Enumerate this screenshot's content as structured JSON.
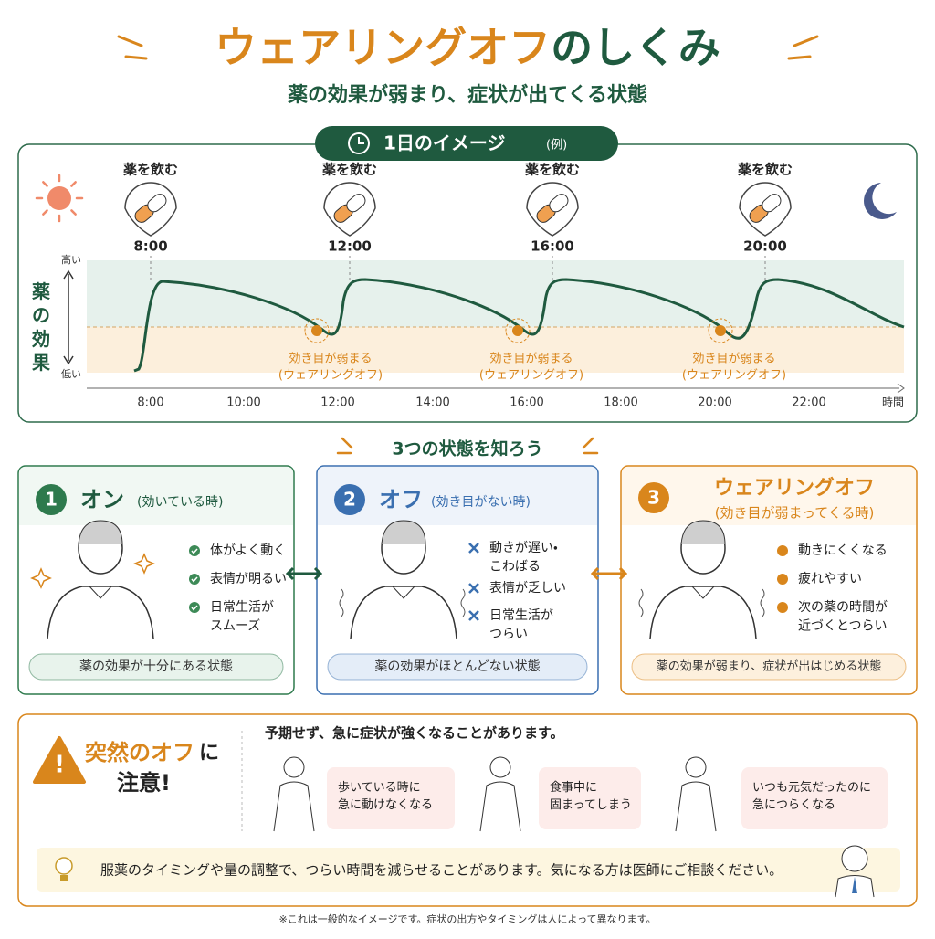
{
  "header": {
    "title_main": "ウェアリングオフ",
    "title_rest": "のしくみ",
    "subtitle": "薬の効果が弱まり、症状が出てくる状態"
  },
  "timeline": {
    "badge": "1日のイメージ",
    "badge_note": "(例)",
    "doses": [
      {
        "label": "薬を飲む",
        "time": "8:00"
      },
      {
        "label": "薬を飲む",
        "time": "12:00"
      },
      {
        "label": "薬を飲む",
        "time": "16:00"
      },
      {
        "label": "薬を飲む",
        "time": "20:00"
      }
    ],
    "y_label": "薬の効果",
    "y_high": "高い",
    "y_low": "低い",
    "wearing_off": [
      {
        "line1": "効き目が弱まる",
        "line2": "(ウェアリングオフ)"
      },
      {
        "line1": "効き目が弱まる",
        "line2": "(ウェアリングオフ)"
      },
      {
        "line1": "効き目が弱まる",
        "line2": "(ウェアリングオフ)"
      }
    ],
    "x_ticks": [
      "8:00",
      "10:00",
      "12:00",
      "14:00",
      "16:00",
      "18:00",
      "20:00",
      "22:00"
    ],
    "x_label": "時間"
  },
  "states": {
    "heading": "3つの状態を知ろう",
    "cards": [
      {
        "number": "1",
        "title": "オン",
        "subtitle": "(効いている時)",
        "items": [
          "体がよく動く",
          "表情が明るい",
          "日常生活が\nスムーズ"
        ],
        "footer": "薬の効果が十分にある状態"
      },
      {
        "number": "2",
        "title": "オフ",
        "subtitle": "(効き目がない時)",
        "items": [
          "動きが遅い・\nこわばる",
          "表情が乏しい",
          "日常生活が\nつらい"
        ],
        "footer": "薬の効果がほとんどない状態"
      },
      {
        "number": "3",
        "title": "ウェアリングオフ",
        "subtitle": "(効き目が弱まってくる時)",
        "items": [
          "動きにくくなる",
          "疲れやすい",
          "次の薬の時間が\n近づくとつらい"
        ],
        "footer": "薬の効果が弱まり、症状が出はじめる状態"
      }
    ]
  },
  "warning": {
    "title_a": "突然のオフ",
    "title_b": "に",
    "title_c": "注意!",
    "intro": "予期せず、急に症状が強くなることがあります。",
    "examples": [
      "歩いている時に\n急に動けなくなる",
      "食事中に\n固まってしまう",
      "いつも元気だったのに\n急につらくなる"
    ],
    "tip": "服薬のタイミングや量の調整で、つらい時間を減らせることがあります。気になる方は医師にご相談ください。"
  },
  "footnote": "※これは一般的なイメージです。症状の出方やタイミングは人によって異なります。"
}
